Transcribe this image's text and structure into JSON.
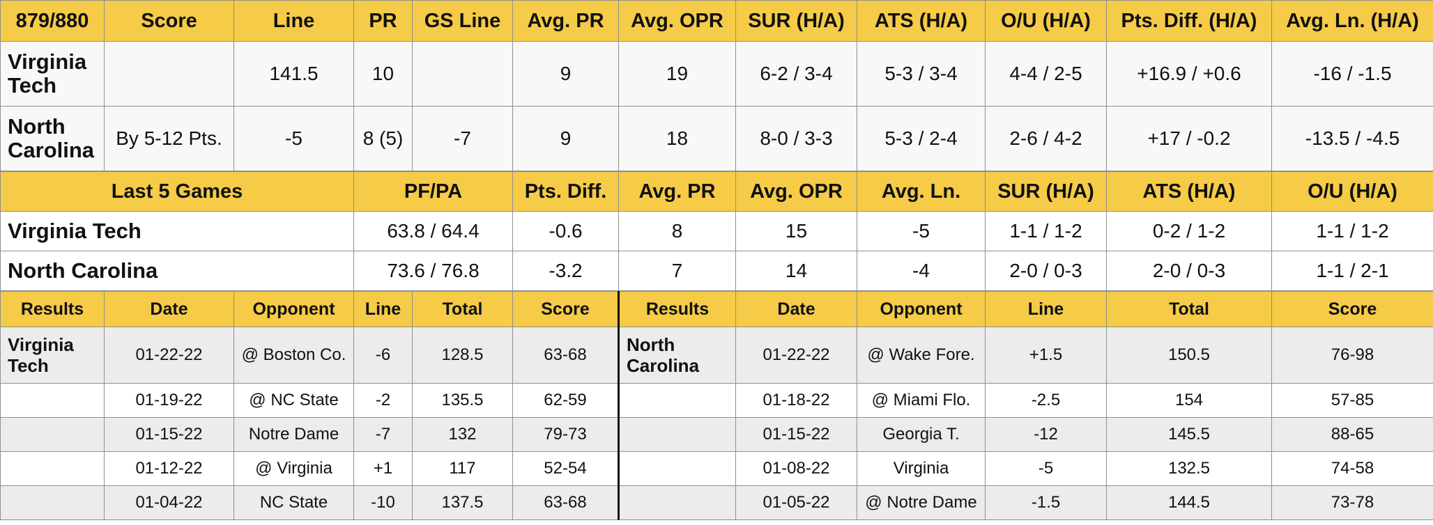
{
  "matchup": {
    "headers": [
      "879/880",
      "Score",
      "Line",
      "PR",
      "GS Line",
      "Avg. PR",
      "Avg. OPR",
      "SUR (H/A)",
      "ATS (H/A)",
      "O/U (H/A)",
      "Pts. Diff. (H/A)",
      "Avg. Ln. (H/A)"
    ],
    "rows": [
      [
        "Virginia Tech",
        "",
        "141.5",
        "10",
        "",
        "9",
        "19",
        "6-2 / 3-4",
        "5-3 / 3-4",
        "4-4 / 2-5",
        "+16.9 / +0.6",
        "-16 / -1.5"
      ],
      [
        "North Carolina",
        "By 5-12 Pts.",
        "-5",
        "8 (5)",
        "-7",
        "9",
        "18",
        "8-0 / 3-3",
        "5-3 / 2-4",
        "2-6 / 4-2",
        "+17 / -0.2",
        "-13.5 / -4.5"
      ]
    ]
  },
  "last5": {
    "headers": [
      "Last 5 Games",
      "PF/PA",
      "Pts. Diff.",
      "Avg. PR",
      "Avg. OPR",
      "Avg. Ln.",
      "SUR (H/A)",
      "ATS (H/A)",
      "O/U (H/A)"
    ],
    "rows": [
      [
        "Virginia Tech",
        "63.8 / 64.4",
        "-0.6",
        "8",
        "15",
        "-5",
        "1-1 / 1-2",
        "0-2 / 1-2",
        "1-1 / 1-2"
      ],
      [
        "North Carolina",
        "73.6 / 76.8",
        "-3.2",
        "7",
        "14",
        "-4",
        "2-0 / 0-3",
        "2-0 / 0-3",
        "1-1 / 2-1"
      ]
    ]
  },
  "results": {
    "headers": [
      "Results",
      "Date",
      "Opponent",
      "Line",
      "Total",
      "Score",
      "Results",
      "Date",
      "Opponent",
      "Line",
      "Total",
      "Score"
    ],
    "rows": [
      [
        "Virginia Tech",
        "01-22-22",
        "@ Boston Co.",
        "-6",
        "128.5",
        "63-68",
        "North Carolina",
        "01-22-22",
        "@ Wake Fore.",
        "+1.5",
        "150.5",
        "76-98"
      ],
      [
        "",
        "01-19-22",
        "@ NC State",
        "-2",
        "135.5",
        "62-59",
        "",
        "01-18-22",
        "@ Miami Flo.",
        "-2.5",
        "154",
        "57-85"
      ],
      [
        "",
        "01-15-22",
        "Notre Dame",
        "-7",
        "132",
        "79-73",
        "",
        "01-15-22",
        "Georgia T.",
        "-12",
        "145.5",
        "88-65"
      ],
      [
        "",
        "01-12-22",
        "@ Virginia",
        "+1",
        "117",
        "52-54",
        "",
        "01-08-22",
        "Virginia",
        "-5",
        "132.5",
        "74-58"
      ],
      [
        "",
        "01-04-22",
        "NC State",
        "-10",
        "137.5",
        "63-68",
        "",
        "01-05-22",
        "@ Notre Dame",
        "-1.5",
        "144.5",
        "73-78"
      ]
    ]
  },
  "colors": {
    "header_bg": "#f5cb47",
    "row_alt_bg": "#ececec",
    "row_bg": "#ffffff",
    "grid": "#8f8f8f"
  }
}
